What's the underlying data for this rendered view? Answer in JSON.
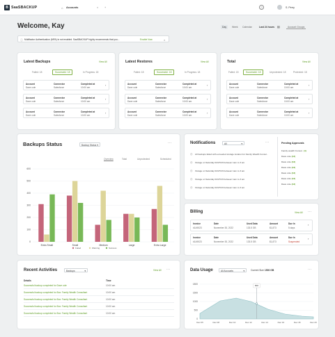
{
  "brand": {
    "name": "SaaSBACKUP",
    "logo": "B"
  },
  "topbar": {
    "tab_label": "Accounts",
    "user": "S. Perry"
  },
  "welcome": {
    "title": "Welcome, Kay"
  },
  "filters": {
    "items": [
      "Day",
      "Week",
      "Calendar",
      "Last 24 hours"
    ],
    "active": "Last 24 hours",
    "account_groups": "Account Groups"
  },
  "alert": {
    "text": "Multifactor Authentication (MFA) is not enabled. SaaSBACKUP highly recommends that you...",
    "link": "Enable Now"
  },
  "latest_backups": {
    "title": "Latest Backups",
    "view_all": "View All",
    "tabs": [
      "Failed: 18",
      "Successful: 18",
      "In Progress: 18"
    ],
    "headers": [
      "Account",
      "Connector",
      "Completed at"
    ],
    "rows": [
      [
        "Dave cole",
        "Salesforce",
        "10:00 am"
      ],
      [
        "Dave cole",
        "Salesforce",
        "10:00 am"
      ],
      [
        "Dave cole",
        "Salesforce",
        "10:00 am"
      ]
    ]
  },
  "latest_restores": {
    "title": "Latest Restores",
    "view_all": "View All",
    "tabs": [
      "Failed: 18",
      "Successful: 18",
      "In Progress: 18"
    ],
    "headers": [
      "Account",
      "Connector",
      "Completed at"
    ],
    "rows": [
      [
        "Dave cole",
        "Salesforce",
        "10:00 am"
      ],
      [
        "Dave cole",
        "Salesforce",
        "10:00 am"
      ],
      [
        "Dave cole",
        "Salesforce",
        "10:00 am"
      ]
    ]
  },
  "total": {
    "title": "Total",
    "view_all": "View All",
    "tabs": [
      "Failed: 18",
      "Successful: 18",
      "Unprotected: 18",
      "Protected: 18"
    ],
    "headers": [
      "Account",
      "Connector",
      "Completed at"
    ],
    "rows": [
      [
        "Dave cole",
        "Salesforce",
        "10:00 am"
      ],
      [
        "Dave cole",
        "Salesforce",
        "10:00 am"
      ],
      [
        "Dave cole",
        "Salesforce",
        "10:00 am"
      ]
    ]
  },
  "backups_status": {
    "title": "Backups Status",
    "dropdown": "Backup Status",
    "tabs": [
      "Overview",
      "Total",
      "Unprotected",
      "Scheduled"
    ]
  },
  "chart_data": {
    "type": "bar",
    "categories": [
      "Extra Small",
      "Small",
      "Medium",
      "Large",
      "Extra Large"
    ],
    "series": [
      {
        "name": "Failed",
        "values": [
          310,
          380,
          140,
          230,
          270
        ]
      },
      {
        "name": "Warning",
        "values": [
          60,
          500,
          420,
          230,
          460
        ]
      },
      {
        "name": "Success",
        "values": [
          390,
          320,
          180,
          200,
          140
        ]
      }
    ],
    "ylim": [
      0,
      600
    ],
    "yticks": [
      0,
      100,
      200,
      300,
      400,
      500,
      600
    ],
    "colors": [
      "#c4657a",
      "#ddd599",
      "#78b857"
    ]
  },
  "notifications": {
    "title": "Notifications",
    "dropdown": "All",
    "items": [
      "All backups failed with exceeded storage location for Family Wealth Consul..",
      "Outage on Saturday 02/27/23 between 1am to 3 am",
      "Outage on Saturday 02/27/23 between 1am to 3 am",
      "Outage on Saturday 02/27/23 between 1am to 3 am",
      "Outage on Saturday 02/27/23 between 1am to 3 am"
    ],
    "pending_title": "Pending Approvals",
    "pending": [
      [
        "Family wealth Consul..",
        "(4)"
      ],
      [
        "Dave cole",
        "(13)"
      ],
      [
        "Dave cole",
        "(13)"
      ],
      [
        "Dave cole",
        "(13)"
      ],
      [
        "Dave cole",
        "(13)"
      ],
      [
        "Dave cole",
        "(13)"
      ],
      [
        "Dave cole",
        "(13)"
      ]
    ]
  },
  "billing": {
    "title": "Billing",
    "view_all": "View All",
    "headers": [
      "Invoice",
      "Date",
      "Used Data",
      "Amount",
      "Due In"
    ],
    "rows": [
      [
        "#1A9023",
        "November 30, 2022",
        "133.5 GB",
        "$1,873",
        "5 days"
      ],
      [
        "#1A9023",
        "November 30, 2022",
        "133.5 GB",
        "$1,873",
        "Suspended"
      ]
    ]
  },
  "recent": {
    "title": "Recent Activities",
    "dropdown": "Backups",
    "view_all": "View All",
    "headers": [
      "Details",
      "Time"
    ],
    "rows": [
      [
        "Successful backup completed for Dave cole",
        "10:00 am"
      ],
      [
        "Successful backup completed for Box: Family Wealth Consultant",
        "10:00 am"
      ],
      [
        "Successful backup completed for Box: Family Wealth Consultant",
        "10:00 am"
      ],
      [
        "Successful backup completed for Box: Family Wealth Consultant",
        "10:00 am"
      ],
      [
        "Successful backup completed for Box: Family Wealth Consultant",
        "10:00 am"
      ]
    ]
  },
  "data_usage": {
    "title": "Data Usage",
    "dropdown": "All Accounts",
    "current_label": "Current Size",
    "current_value": "1500 GB",
    "marker": "800",
    "x_labels": [
      "Dec 05",
      "Dec 08",
      "Dec 10",
      "Dec 12",
      "Dec 14",
      "Dec 16",
      "Dec 18",
      "Dec 20"
    ],
    "y_labels": [
      "1800",
      "1500",
      "1000",
      "500",
      "0"
    ]
  }
}
